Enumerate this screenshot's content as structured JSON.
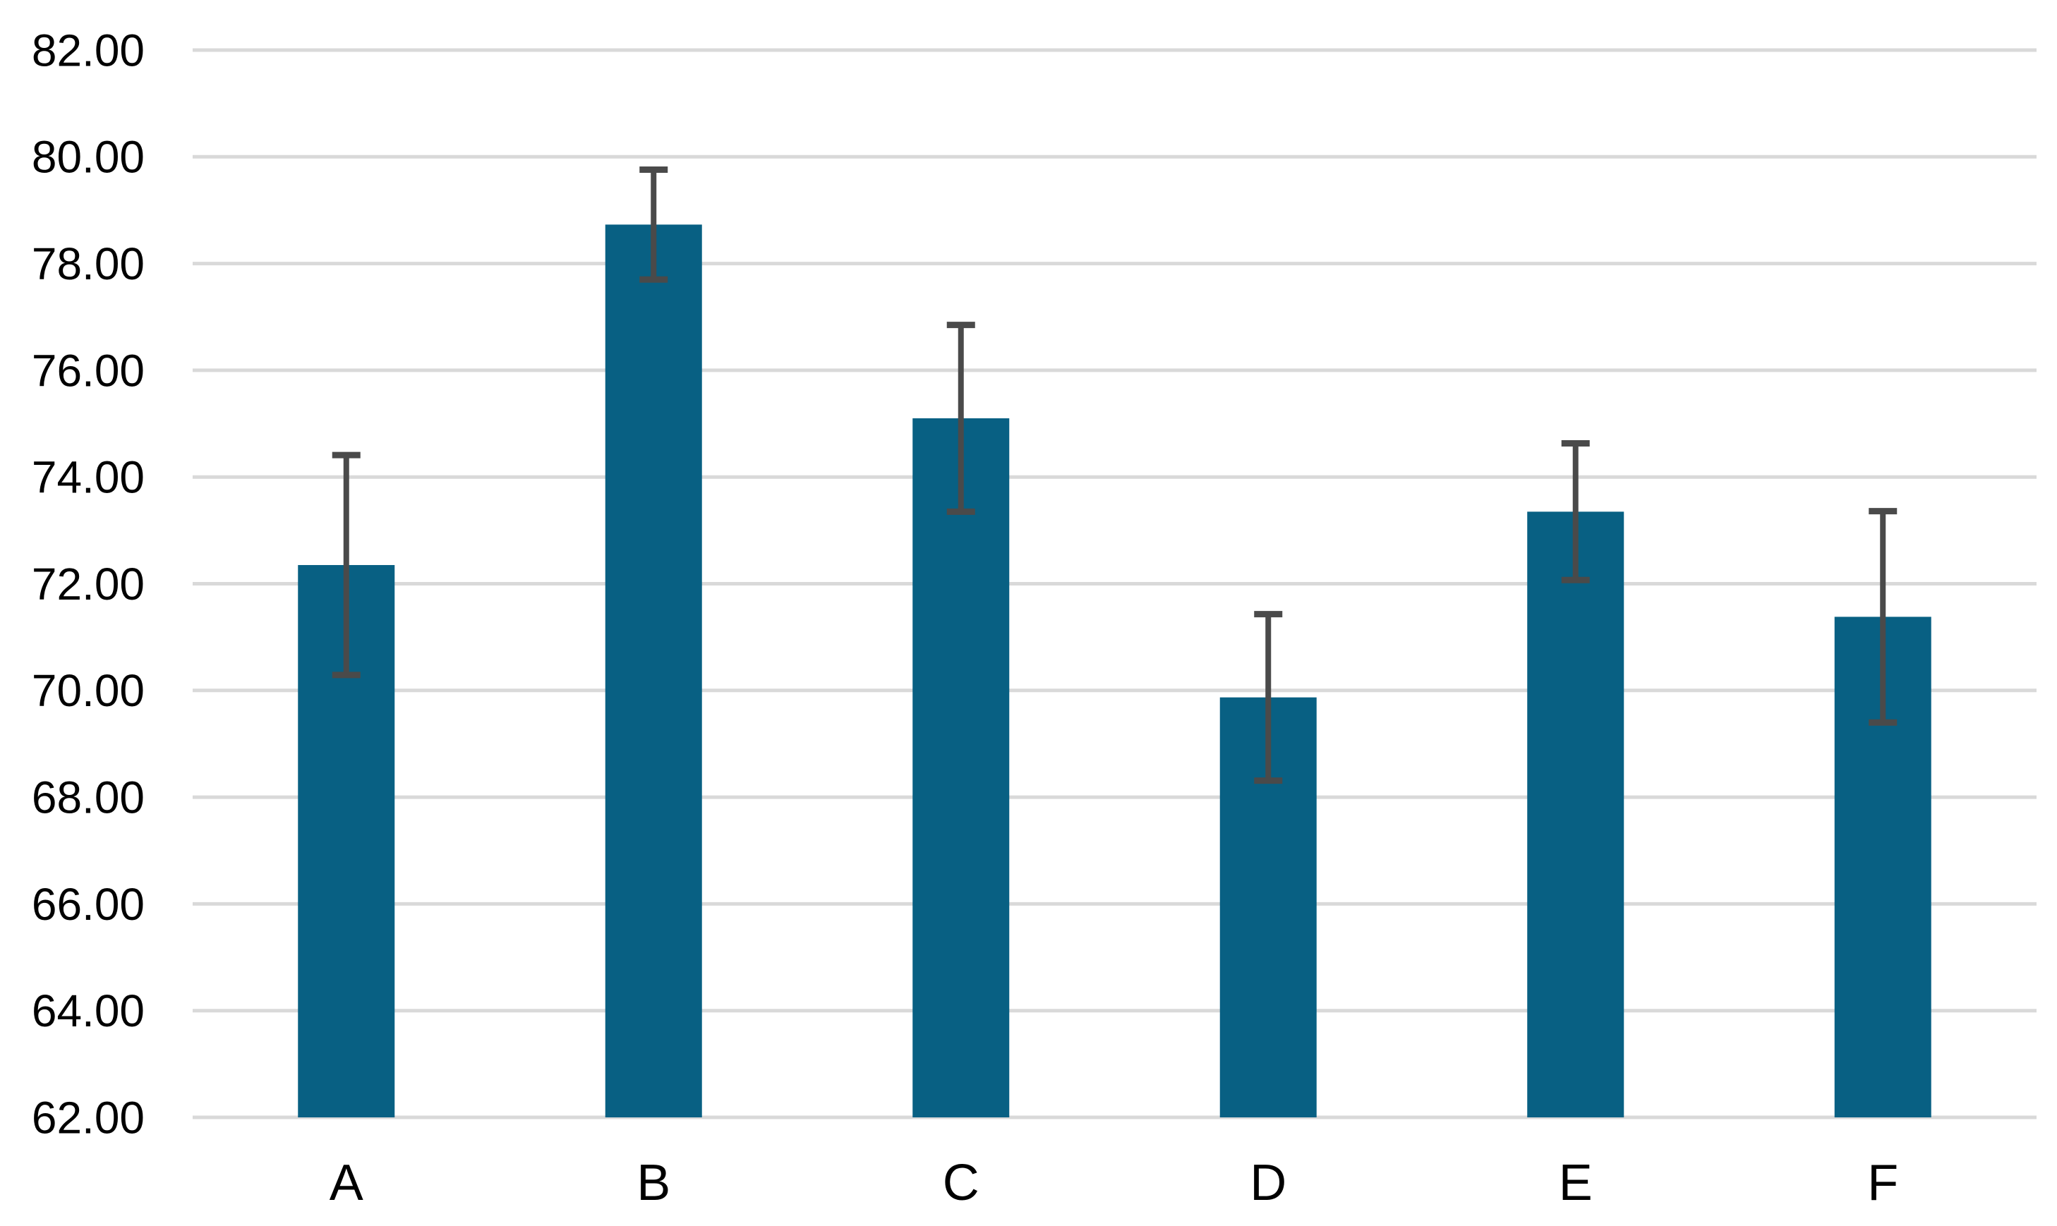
{
  "chart_data": {
    "type": "bar",
    "title": "",
    "xlabel": "",
    "ylabel": "",
    "categories": [
      "A",
      "B",
      "C",
      "D",
      "E",
      "F"
    ],
    "series": [
      {
        "name": "mean",
        "values": [
          72.35,
          78.73,
          75.1,
          69.87,
          73.35,
          71.38
        ]
      }
    ],
    "error_bars": {
      "type": "symmetric",
      "values": [
        2.06,
        1.03,
        1.75,
        1.56,
        1.28,
        1.98
      ]
    },
    "ylim": [
      62,
      82
    ],
    "y_tick_step": 2,
    "y_tick_labels": [
      "82.00",
      "80.00",
      "78.00",
      "76.00",
      "74.00",
      "72.00",
      "70.00",
      "68.00",
      "66.00",
      "64.00",
      "62.00"
    ],
    "grid": "horizontal",
    "legend": "none",
    "colors": {
      "bar": "#086083",
      "error_bar": "#4A4A4A",
      "gridline": "#D9D9D9",
      "label_text": "#000000",
      "background": "#FFFFFF"
    }
  }
}
